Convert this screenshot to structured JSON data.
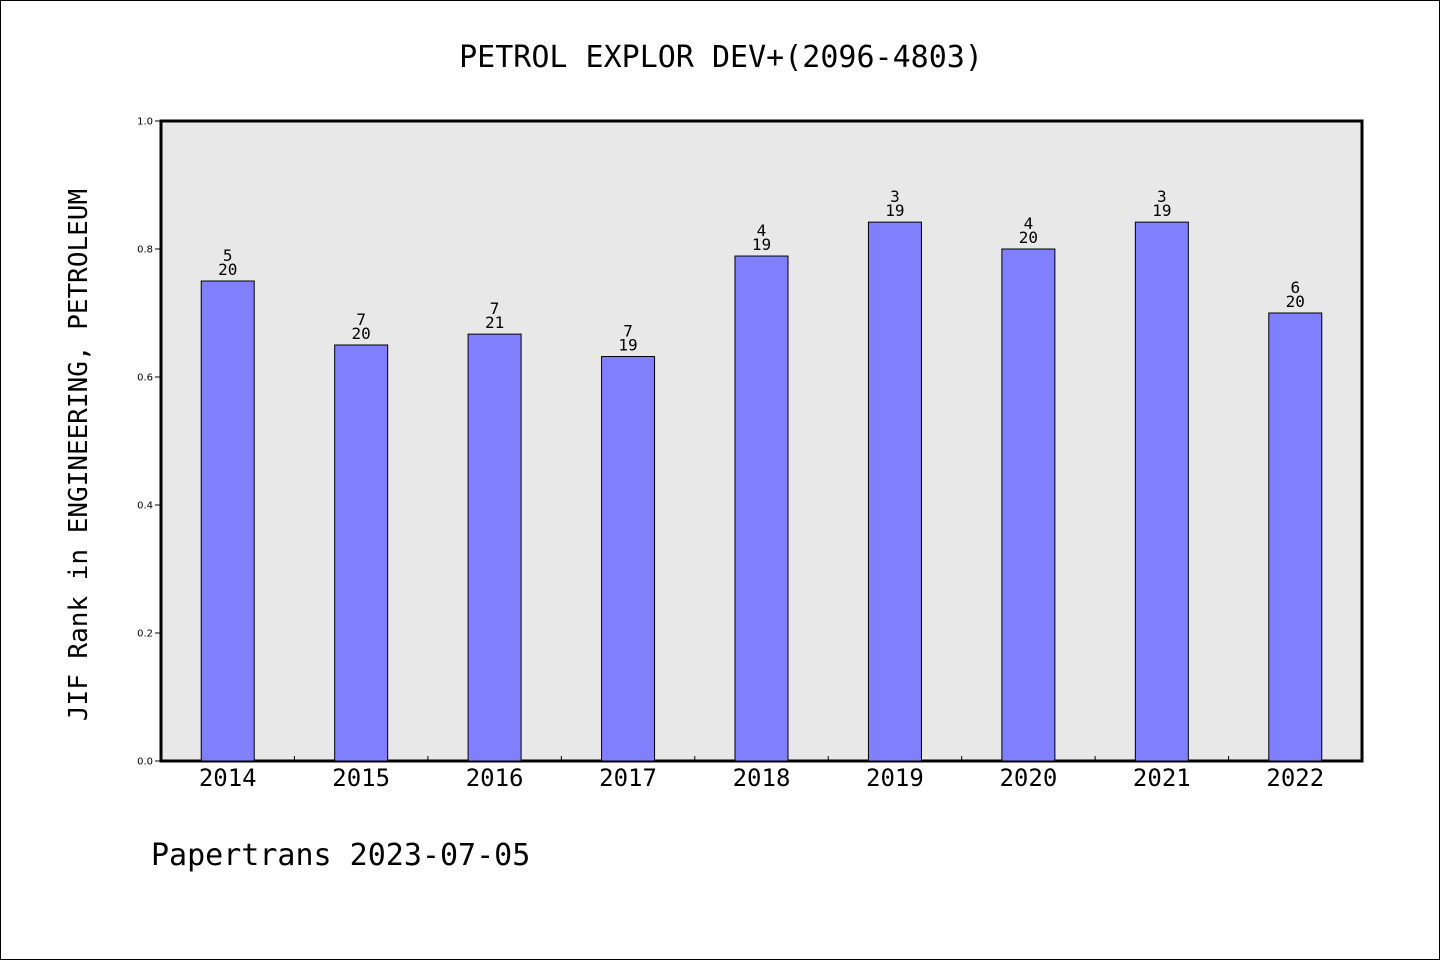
{
  "footer": "Papertrans 2023-07-05",
  "colors": {
    "bar_fill": "#8080ff",
    "bar_stroke": "#000000",
    "plot_background": "#e8e8e8"
  },
  "chart_data": {
    "type": "bar",
    "title": "PETROL EXPLOR DEV+(2096-4803)",
    "xlabel": "",
    "ylabel": "JIF Rank in ENGINEERING, PETROLEUM",
    "ylim": [
      0,
      1.0
    ],
    "yticks": [
      "0.0",
      "0.2",
      "0.4",
      "0.6",
      "0.8",
      "1.0"
    ],
    "grid": false,
    "categories": [
      "2014",
      "2015",
      "2016",
      "2017",
      "2018",
      "2019",
      "2020",
      "2021",
      "2022"
    ],
    "values": [
      0.75,
      0.65,
      0.667,
      0.632,
      0.789,
      0.842,
      0.8,
      0.842,
      0.7
    ],
    "rank": [
      "5",
      "7",
      "7",
      "7",
      "4",
      "3",
      "4",
      "3",
      "6"
    ],
    "total": [
      "20",
      "20",
      "21",
      "19",
      "19",
      "19",
      "20",
      "19",
      "20"
    ]
  }
}
